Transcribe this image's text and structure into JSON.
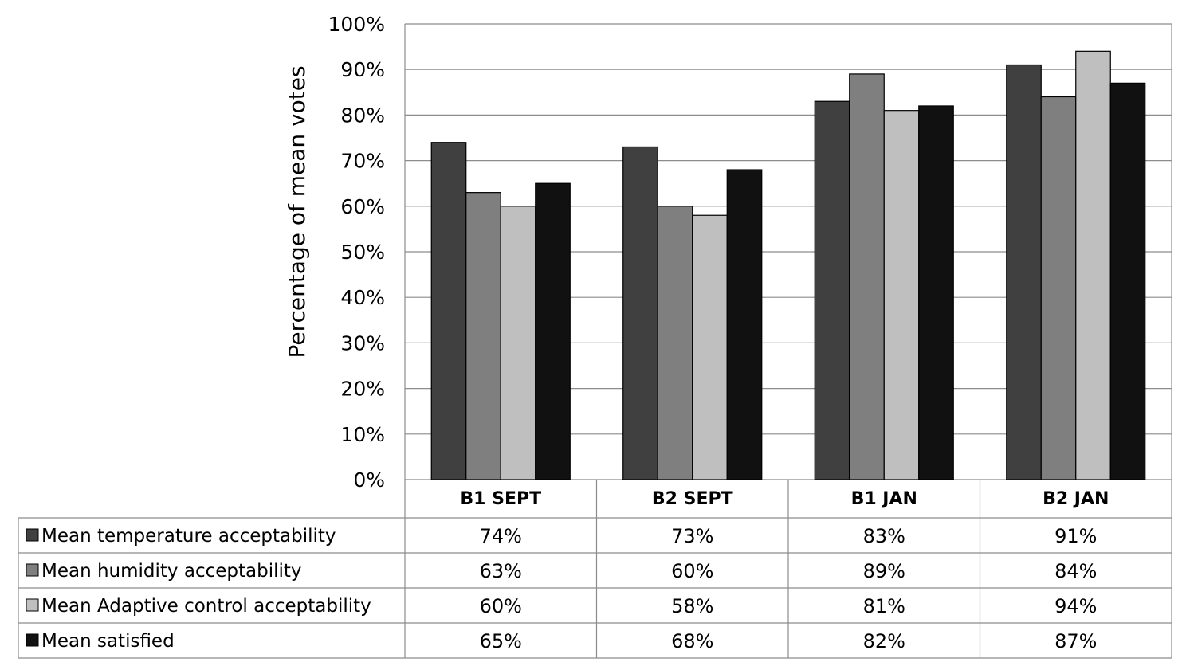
{
  "chart_data": {
    "type": "bar",
    "ylabel": "Percentage of  mean votes",
    "xlabel": "",
    "ylim": [
      0,
      100
    ],
    "y_ticks": [
      "0%",
      "10%",
      "20%",
      "30%",
      "40%",
      "50%",
      "60%",
      "70%",
      "80%",
      "90%",
      "100%"
    ],
    "grid": true,
    "legend": "data-table-below",
    "categories": [
      "B1 SEPT",
      "B2 SEPT",
      "B1 JAN",
      "B2 JAN"
    ],
    "series": [
      {
        "name": "Mean temperature acceptability",
        "color": "#404040",
        "values": [
          74,
          73,
          83,
          91
        ],
        "labels": [
          "74%",
          "73%",
          "83%",
          "91%"
        ]
      },
      {
        "name": "Mean humidity  acceptability",
        "color": "#7f7f7f",
        "values": [
          63,
          60,
          89,
          84
        ],
        "labels": [
          "63%",
          "60%",
          "89%",
          "84%"
        ]
      },
      {
        "name": "Mean Adaptive control acceptability",
        "color": "#bfbfbf",
        "values": [
          60,
          58,
          81,
          94
        ],
        "labels": [
          "60%",
          "58%",
          "81%",
          "94%"
        ]
      },
      {
        "name": "Mean satisfied",
        "color": "#111111",
        "values": [
          65,
          68,
          82,
          87
        ],
        "labels": [
          "65%",
          "68%",
          "82%",
          "87%"
        ]
      }
    ]
  }
}
